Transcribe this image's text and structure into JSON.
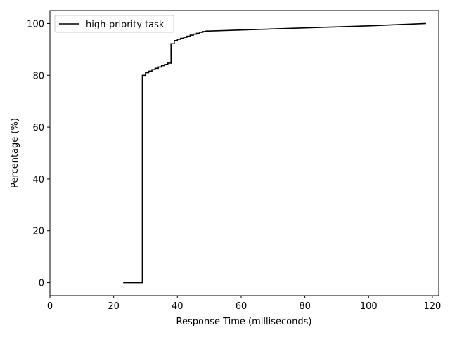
{
  "chart_data": {
    "type": "line",
    "title": "",
    "xlabel": "Response Time (milliseconds)",
    "ylabel": "Percentage (%)",
    "xlim": [
      0,
      122
    ],
    "ylim": [
      -5,
      105
    ],
    "xticks": [
      0,
      20,
      40,
      60,
      80,
      100,
      120
    ],
    "yticks": [
      0,
      20,
      40,
      60,
      80,
      100
    ],
    "grid": false,
    "legend_position": "top-left",
    "series": [
      {
        "name": "high-priority task",
        "color": "#000000",
        "step": true,
        "points": [
          [
            23,
            0
          ],
          [
            29,
            0
          ],
          [
            29,
            80
          ],
          [
            30,
            80
          ],
          [
            30,
            81
          ],
          [
            31,
            81
          ],
          [
            31,
            81.6
          ],
          [
            32,
            81.6
          ],
          [
            32,
            82.2
          ],
          [
            33,
            82.2
          ],
          [
            33,
            82.7
          ],
          [
            34,
            82.7
          ],
          [
            34,
            83.2
          ],
          [
            35,
            83.2
          ],
          [
            35,
            83.7
          ],
          [
            36,
            83.7
          ],
          [
            36,
            84.2
          ],
          [
            37,
            84.2
          ],
          [
            37,
            84.7
          ],
          [
            38,
            84.7
          ],
          [
            38,
            92.2
          ],
          [
            39,
            92.2
          ],
          [
            39,
            93.4
          ],
          [
            40,
            93.4
          ],
          [
            40,
            93.9
          ],
          [
            41,
            93.9
          ],
          [
            41,
            94.3
          ],
          [
            42,
            94.3
          ],
          [
            42,
            94.7
          ],
          [
            43,
            94.7
          ],
          [
            43,
            95.1
          ],
          [
            44,
            95.1
          ],
          [
            44,
            95.5
          ],
          [
            45,
            95.5
          ],
          [
            45,
            95.9
          ],
          [
            46,
            95.9
          ],
          [
            46,
            96.2
          ],
          [
            47,
            96.2
          ],
          [
            47,
            96.6
          ],
          [
            48,
            96.6
          ],
          [
            48,
            96.9
          ],
          [
            49,
            96.9
          ],
          [
            49,
            97.1
          ],
          [
            50,
            97.1
          ],
          [
            60,
            97.5
          ],
          [
            80,
            98.3
          ],
          [
            100,
            99.1
          ],
          [
            118,
            100
          ]
        ]
      }
    ]
  }
}
